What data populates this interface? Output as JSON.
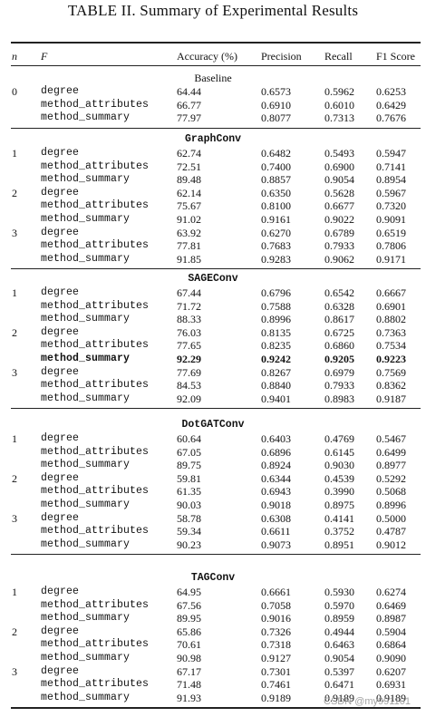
{
  "title": "TABLE II. Summary of Experimental Results",
  "headers": {
    "n": "n",
    "f": "F",
    "accuracy": "Accuracy (%)",
    "precision": "Precision",
    "recall": "Recall",
    "f1": "F1 Score"
  },
  "sections": [
    {
      "name": "Baseline",
      "mono": false,
      "rows": [
        [
          "0",
          "degree",
          "64.44",
          "0.6573",
          "0.5962",
          "0.6253"
        ],
        [
          "",
          "method_attributes",
          "66.77",
          "0.6910",
          "0.6010",
          "0.6429"
        ],
        [
          "",
          "method_summary",
          "77.97",
          "0.8077",
          "0.7313",
          "0.7676"
        ]
      ]
    },
    {
      "name": "GraphConv",
      "mono": true,
      "rows": [
        [
          "1",
          "degree",
          "62.74",
          "0.6482",
          "0.5493",
          "0.5947"
        ],
        [
          "",
          "method_attributes",
          "72.51",
          "0.7400",
          "0.6900",
          "0.7141"
        ],
        [
          "",
          "method_summary",
          "89.48",
          "0.8857",
          "0.9054",
          "0.8954"
        ],
        [
          "2",
          "degree",
          "62.14",
          "0.6350",
          "0.5628",
          "0.5967"
        ],
        [
          "",
          "method_attributes",
          "75.67",
          "0.8100",
          "0.6677",
          "0.7320"
        ],
        [
          "",
          "method_summary",
          "91.02",
          "0.9161",
          "0.9022",
          "0.9091"
        ],
        [
          "3",
          "degree",
          "63.92",
          "0.6270",
          "0.6789",
          "0.6519"
        ],
        [
          "",
          "method_attributes",
          "77.81",
          "0.7683",
          "0.7933",
          "0.7806"
        ],
        [
          "",
          "method_summary",
          "91.85",
          "0.9283",
          "0.9062",
          "0.9171"
        ]
      ]
    },
    {
      "name": "SAGEConv",
      "mono": true,
      "rows": [
        [
          "1",
          "degree",
          "67.44",
          "0.6796",
          "0.6542",
          "0.6667"
        ],
        [
          "",
          "method_attributes",
          "71.72",
          "0.7588",
          "0.6328",
          "0.6901"
        ],
        [
          "",
          "method_summary",
          "88.33",
          "0.8996",
          "0.8617",
          "0.8802"
        ],
        [
          "2",
          "degree",
          "76.03",
          "0.8135",
          "0.6725",
          "0.7363"
        ],
        [
          "",
          "method_attributes",
          "77.65",
          "0.8235",
          "0.6860",
          "0.7534"
        ],
        [
          "",
          "method_summary",
          "92.29",
          "0.9242",
          "0.9205",
          "0.9223",
          "bold"
        ],
        [
          "3",
          "degree",
          "77.69",
          "0.8267",
          "0.6979",
          "0.7569"
        ],
        [
          "",
          "method_attributes",
          "84.53",
          "0.8840",
          "0.7933",
          "0.8362"
        ],
        [
          "",
          "method_summary",
          "92.09",
          "0.9401",
          "0.8983",
          "0.9187"
        ]
      ]
    },
    {
      "name": "DotGATConv",
      "mono": true,
      "rows": [
        [
          "1",
          "degree",
          "60.64",
          "0.6403",
          "0.4769",
          "0.5467"
        ],
        [
          "",
          "method_attributes",
          "67.05",
          "0.6896",
          "0.6145",
          "0.6499"
        ],
        [
          "",
          "method_summary",
          "89.75",
          "0.8924",
          "0.9030",
          "0.8977"
        ],
        [
          "2",
          "degree",
          "59.81",
          "0.6344",
          "0.4539",
          "0.5292"
        ],
        [
          "",
          "method_attributes",
          "61.35",
          "0.6943",
          "0.3990",
          "0.5068"
        ],
        [
          "",
          "method_summary",
          "90.03",
          "0.9018",
          "0.8975",
          "0.8996"
        ],
        [
          "3",
          "degree",
          "58.78",
          "0.6308",
          "0.4141",
          "0.5000"
        ],
        [
          "",
          "method_attributes",
          "59.34",
          "0.6611",
          "0.3752",
          "0.4787"
        ],
        [
          "",
          "method_summary",
          "90.23",
          "0.9073",
          "0.8951",
          "0.9012"
        ]
      ]
    },
    {
      "name": "TAGConv",
      "mono": true,
      "rows": [
        [
          "1",
          "degree",
          "64.95",
          "0.6661",
          "0.5930",
          "0.6274"
        ],
        [
          "",
          "method_attributes",
          "67.56",
          "0.7058",
          "0.5970",
          "0.6469"
        ],
        [
          "",
          "method_summary",
          "89.95",
          "0.9016",
          "0.8959",
          "0.8987"
        ],
        [
          "2",
          "degree",
          "65.86",
          "0.7326",
          "0.4944",
          "0.5904"
        ],
        [
          "",
          "method_attributes",
          "70.61",
          "0.7318",
          "0.6463",
          "0.6864"
        ],
        [
          "",
          "method_summary",
          "90.98",
          "0.9127",
          "0.9054",
          "0.9090"
        ],
        [
          "3",
          "degree",
          "67.17",
          "0.7301",
          "0.5397",
          "0.6207"
        ],
        [
          "",
          "method_attributes",
          "71.48",
          "0.7461",
          "0.6471",
          "0.6931"
        ],
        [
          "",
          "method_summary",
          "91.93",
          "0.9189",
          "0.9189",
          "0.9189"
        ]
      ]
    }
  ],
  "watermark": "CSDN @my991101"
}
